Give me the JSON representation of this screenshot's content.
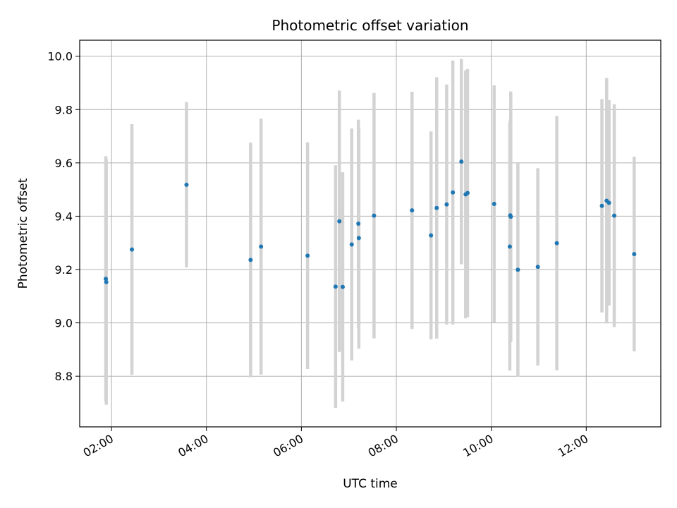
{
  "chart_data": {
    "type": "scatter",
    "title": "Photometric offset variation",
    "xlabel": "UTC time",
    "ylabel": "Photometric offset",
    "grid": true,
    "xlim_hours": [
      1.33,
      13.57
    ],
    "ylim": [
      8.61,
      10.06
    ],
    "x_ticks": [
      {
        "value": 2,
        "label": "02:00"
      },
      {
        "value": 4,
        "label": "04:00"
      },
      {
        "value": 6,
        "label": "06:00"
      },
      {
        "value": 8,
        "label": "08:00"
      },
      {
        "value": 10,
        "label": "10:00"
      },
      {
        "value": 12,
        "label": "12:00"
      }
    ],
    "y_ticks": [
      {
        "value": 8.8,
        "label": "8.8"
      },
      {
        "value": 9.0,
        "label": "9.0"
      },
      {
        "value": 9.2,
        "label": "9.2"
      },
      {
        "value": 9.4,
        "label": "9.4"
      },
      {
        "value": 9.6,
        "label": "9.6"
      },
      {
        "value": 9.8,
        "label": "9.8"
      },
      {
        "value": 10.0,
        "label": "10.0"
      }
    ],
    "point_color": "#1f77b4",
    "errorbar_color": "#d3d3d3",
    "points": [
      {
        "x": 1.88,
        "y": 9.165,
        "err": 0.46
      },
      {
        "x": 1.89,
        "y": 9.153,
        "err": 0.46
      },
      {
        "x": 2.43,
        "y": 9.275,
        "err": 0.47
      },
      {
        "x": 3.58,
        "y": 9.518,
        "err": 0.31
      },
      {
        "x": 4.93,
        "y": 9.236,
        "err": 0.44
      },
      {
        "x": 5.15,
        "y": 9.286,
        "err": 0.48
      },
      {
        "x": 6.13,
        "y": 9.252,
        "err": 0.425
      },
      {
        "x": 6.72,
        "y": 9.136,
        "err": 0.455
      },
      {
        "x": 6.8,
        "y": 9.381,
        "err": 0.49
      },
      {
        "x": 6.87,
        "y": 9.135,
        "err": 0.43
      },
      {
        "x": 7.06,
        "y": 9.294,
        "err": 0.435
      },
      {
        "x": 7.2,
        "y": 9.372,
        "err": 0.39
      },
      {
        "x": 7.21,
        "y": 9.318,
        "err": 0.415
      },
      {
        "x": 7.53,
        "y": 9.402,
        "err": 0.46
      },
      {
        "x": 8.33,
        "y": 9.422,
        "err": 0.445
      },
      {
        "x": 8.73,
        "y": 9.328,
        "err": 0.39
      },
      {
        "x": 8.85,
        "y": 9.431,
        "err": 0.49
      },
      {
        "x": 9.06,
        "y": 9.444,
        "err": 0.45
      },
      {
        "x": 9.19,
        "y": 9.489,
        "err": 0.495
      },
      {
        "x": 9.37,
        "y": 9.605,
        "err": 0.385
      },
      {
        "x": 9.46,
        "y": 9.482,
        "err": 0.465
      },
      {
        "x": 9.5,
        "y": 9.487,
        "err": 0.465
      },
      {
        "x": 10.06,
        "y": 9.446,
        "err": 0.445
      },
      {
        "x": 10.39,
        "y": 9.286,
        "err": 0.465
      },
      {
        "x": 10.4,
        "y": 9.403,
        "err": 0.36
      },
      {
        "x": 10.41,
        "y": 9.398,
        "err": 0.47
      },
      {
        "x": 10.56,
        "y": 9.199,
        "err": 0.4
      },
      {
        "x": 10.98,
        "y": 9.21,
        "err": 0.37
      },
      {
        "x": 11.38,
        "y": 9.299,
        "err": 0.477
      },
      {
        "x": 12.33,
        "y": 9.439,
        "err": 0.4
      },
      {
        "x": 12.43,
        "y": 9.458,
        "err": 0.46
      },
      {
        "x": 12.48,
        "y": 9.45,
        "err": 0.385
      },
      {
        "x": 12.59,
        "y": 9.402,
        "err": 0.418
      },
      {
        "x": 13.01,
        "y": 9.258,
        "err": 0.365
      }
    ]
  }
}
